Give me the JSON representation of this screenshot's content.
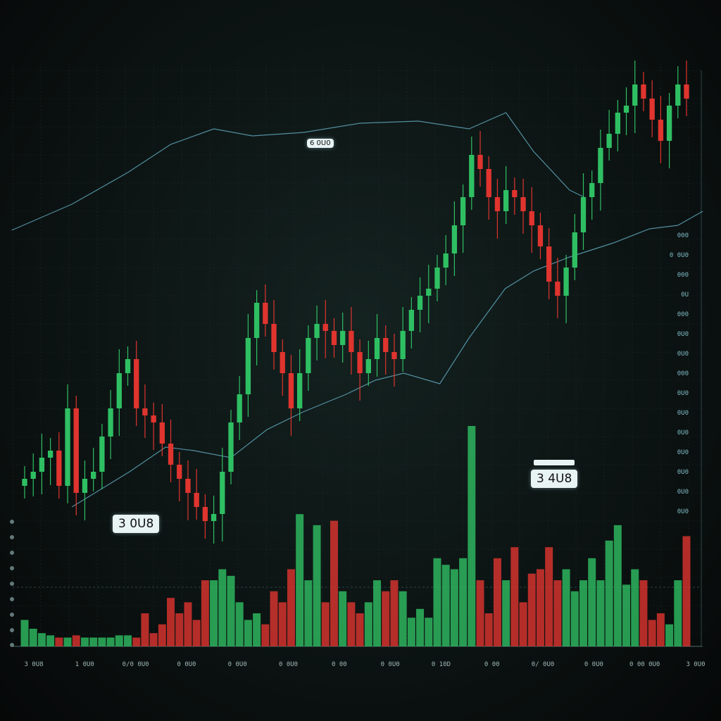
{
  "chart_data": {
    "type": "candlestick",
    "title": "",
    "xlabel": "",
    "ylabel": "",
    "grid": true,
    "colors": {
      "up": "#2fbf63",
      "down": "#e0342f",
      "ma": "#5fa3b8",
      "ma_short": "#d0553a"
    },
    "close": [
      320,
      330,
      350,
      360,
      310,
      420,
      300,
      320,
      330,
      380,
      420,
      470,
      490,
      420,
      410,
      400,
      370,
      340,
      320,
      300,
      280,
      260,
      270,
      330,
      400,
      440,
      520,
      570,
      540,
      500,
      470,
      420,
      470,
      520,
      540,
      530,
      510,
      530,
      500,
      470,
      490,
      520,
      500,
      490,
      530,
      560,
      580,
      590,
      620,
      640,
      680,
      720,
      780,
      760,
      720,
      700,
      730,
      720,
      700,
      680,
      650,
      600,
      580,
      620,
      670,
      720,
      740,
      790,
      810,
      840,
      850,
      880,
      860,
      830,
      800,
      850,
      880,
      860
    ],
    "volume": [
      12,
      8,
      6,
      5,
      4,
      4,
      5,
      4,
      4,
      4,
      4,
      5,
      5,
      4,
      15,
      6,
      10,
      22,
      15,
      20,
      12,
      30,
      30,
      35,
      32,
      20,
      12,
      15,
      10,
      25,
      20,
      35,
      60,
      30,
      55,
      20,
      57,
      25,
      20,
      15,
      20,
      30,
      25,
      30,
      25,
      13,
      17,
      13,
      40,
      37,
      35,
      40,
      100,
      30,
      15,
      40,
      30,
      45,
      20,
      33,
      35,
      45,
      30,
      35,
      25,
      30,
      40,
      30,
      48,
      55,
      28,
      35,
      30,
      12,
      15,
      10,
      30,
      50
    ],
    "ma_long": [
      [
        -1.5,
        673
      ],
      [
        5.5,
        710
      ],
      [
        12,
        755
      ],
      [
        17,
        795
      ],
      [
        22,
        817
      ],
      [
        26.5,
        807
      ],
      [
        32.5,
        812
      ],
      [
        39,
        825
      ],
      [
        45.8,
        828
      ],
      [
        51.7,
        817
      ],
      [
        56,
        840
      ],
      [
        59.2,
        785
      ],
      [
        63.4,
        730
      ],
      [
        65.1,
        720
      ]
    ],
    "ma_short": [
      [
        5.5,
        280
      ],
      [
        12.2,
        330
      ],
      [
        16.4,
        365
      ],
      [
        19.7,
        360
      ],
      [
        24,
        350
      ],
      [
        28.2,
        390
      ],
      [
        32.4,
        415
      ],
      [
        37.4,
        440
      ],
      [
        40.8,
        460
      ],
      [
        44.1,
        470
      ],
      [
        48.3,
        455
      ],
      [
        51.7,
        520
      ],
      [
        55.9,
        590
      ],
      [
        59.2,
        615
      ],
      [
        63.4,
        635
      ],
      [
        68.5,
        655
      ],
      [
        72.7,
        675
      ],
      [
        76,
        680
      ],
      [
        78.9,
        700
      ]
    ],
    "price_tags": [
      "6 0U0",
      "3 0U8",
      "3 4U8"
    ],
    "x_tick_labels": [
      "3 0U8",
      "1 0U0",
      "0/0 0U0",
      "0 0U0",
      "0 0U0",
      "0 0U0",
      "0 00",
      "0 0U0",
      "0 10D",
      "0 00",
      "0/ 0U0",
      "0 0U0",
      "0 00 0U0",
      "3 0U0"
    ],
    "y_tick_labels": [
      "000",
      "0 0U0",
      "000",
      "0U",
      "000",
      "0U0",
      "0U0",
      "000",
      "0U0",
      "0U0",
      "0U0",
      "0U0",
      "0U0",
      "0U0",
      "0U0"
    ]
  }
}
